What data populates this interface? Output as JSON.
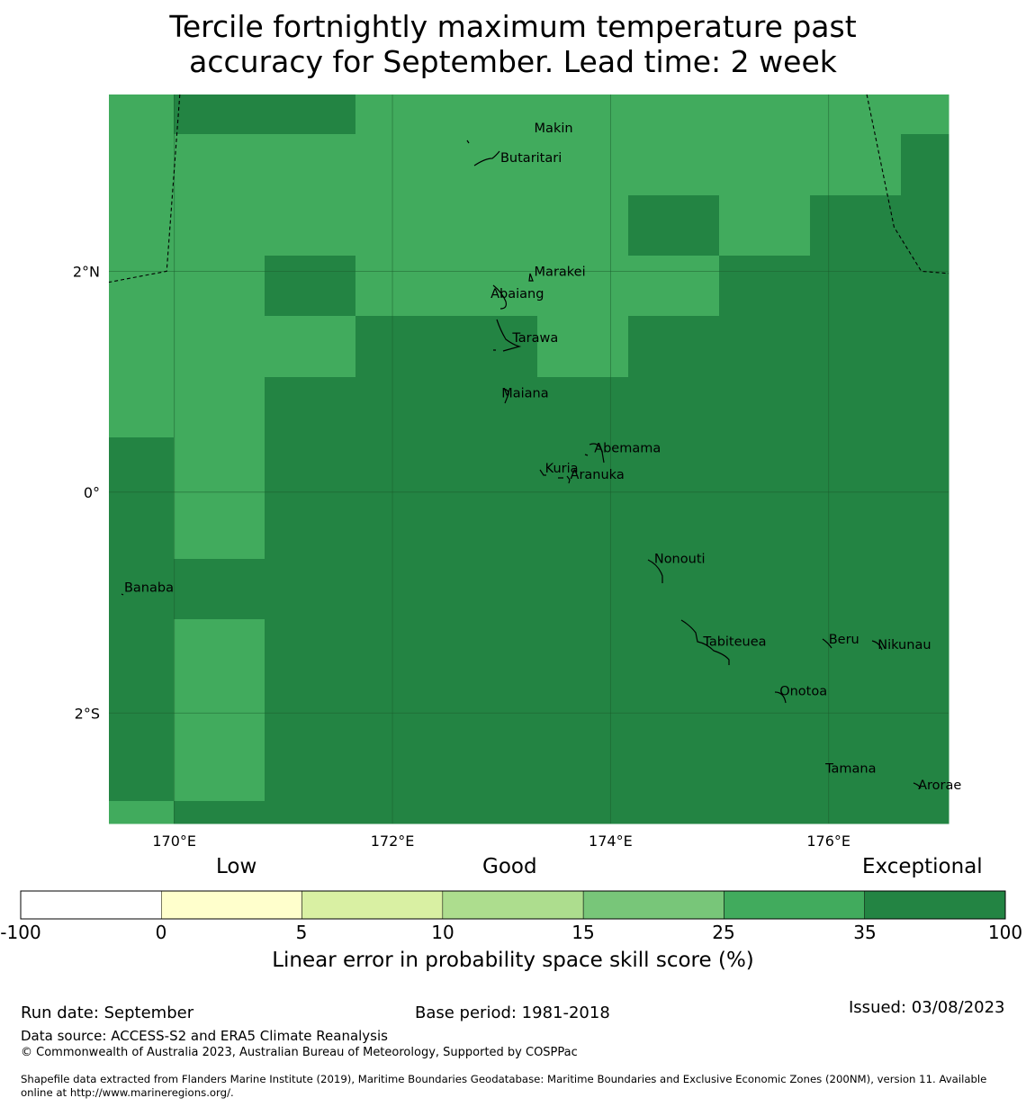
{
  "title": {
    "line1": "Tercile fortnightly maximum temperature past",
    "line2": "accuracy for September. Lead time: 2 week"
  },
  "map": {
    "lon_range": [
      169.4,
      177.1
    ],
    "lat_range": [
      -3.0,
      3.6
    ],
    "cell_size_deg": 0.833,
    "colors": {
      "exceptional": "#238443",
      "good_high": "#41ab5d"
    },
    "grid_columns": [
      "<=170.0",
      "170.0-170.8",
      "170.8-171.7",
      "171.7-172.5",
      "172.5-173.3",
      "173.3-174.2",
      "174.2-175.0",
      "175.0-175.8",
      "175.8-176.7",
      ">=176.7"
    ],
    "grid_rows_lat": [
      "3.6",
      "3.3",
      "2.8",
      "2.3",
      "1.8",
      "1.2",
      "0.5",
      "-0.6",
      "-1.2",
      "-2.8"
    ],
    "grid": [
      [
        "L",
        "D",
        "D",
        "L",
        "L",
        "L",
        "L",
        "L",
        "L",
        "L"
      ],
      [
        "L",
        "L",
        "L",
        "L",
        "L",
        "L",
        "L",
        "L",
        "L",
        "D"
      ],
      [
        "L",
        "L",
        "L",
        "L",
        "L",
        "L",
        "D",
        "L",
        "D",
        "D"
      ],
      [
        "L",
        "L",
        "D",
        "L",
        "L",
        "L",
        "L",
        "D",
        "D",
        "D"
      ],
      [
        "L",
        "L",
        "L",
        "D",
        "D",
        "L",
        "D",
        "D",
        "D",
        "D"
      ],
      [
        "L",
        "L",
        "D",
        "D",
        "D",
        "D",
        "D",
        "D",
        "D",
        "D"
      ],
      [
        "D",
        "L",
        "D",
        "D",
        "D",
        "D",
        "D",
        "D",
        "D",
        "D"
      ],
      [
        "D",
        "D",
        "D",
        "D",
        "D",
        "D",
        "D",
        "D",
        "D",
        "D"
      ],
      [
        "D",
        "L",
        "D",
        "D",
        "D",
        "D",
        "D",
        "D",
        "D",
        "D"
      ],
      [
        "L",
        "D",
        "D",
        "D",
        "D",
        "D",
        "D",
        "D",
        "D",
        "D"
      ]
    ],
    "x_ticks": [
      {
        "lon": 170,
        "label": "170°E"
      },
      {
        "lon": 172,
        "label": "172°E"
      },
      {
        "lon": 174,
        "label": "174°E"
      },
      {
        "lon": 176,
        "label": "176°E"
      }
    ],
    "y_ticks": [
      {
        "lat": 2,
        "label": "2°N"
      },
      {
        "lat": 0,
        "label": "0°"
      },
      {
        "lat": -2,
        "label": "2°S"
      }
    ],
    "places": [
      {
        "name": "Makin",
        "lon": 173.3,
        "lat": 3.3
      },
      {
        "name": "Butaritari",
        "lon": 172.99,
        "lat": 3.03
      },
      {
        "name": "Marakei",
        "lon": 173.3,
        "lat": 2.0
      },
      {
        "name": "Abaiang",
        "lon": 172.9,
        "lat": 1.8
      },
      {
        "name": "Tarawa",
        "lon": 173.1,
        "lat": 1.4
      },
      {
        "name": "Maiana",
        "lon": 173.0,
        "lat": 0.9
      },
      {
        "name": "Abemama",
        "lon": 173.85,
        "lat": 0.4
      },
      {
        "name": "Kuria",
        "lon": 173.4,
        "lat": 0.22
      },
      {
        "name": "Aranuka",
        "lon": 173.63,
        "lat": 0.16
      },
      {
        "name": "Nonouti",
        "lon": 174.4,
        "lat": -0.6
      },
      {
        "name": "Banaba",
        "lon": 169.54,
        "lat": -0.86
      },
      {
        "name": "Tabiteuea",
        "lon": 174.85,
        "lat": -1.35
      },
      {
        "name": "Beru",
        "lon": 176.0,
        "lat": -1.33
      },
      {
        "name": "Nikunau",
        "lon": 176.45,
        "lat": -1.38
      },
      {
        "name": "Onotoa",
        "lon": 175.55,
        "lat": -1.8
      },
      {
        "name": "Tamana",
        "lon": 175.97,
        "lat": -2.5
      },
      {
        "name": "Arorae",
        "lon": 176.82,
        "lat": -2.65
      }
    ],
    "eez_left": [
      [
        170.05,
        3.6
      ],
      [
        169.93,
        2.0
      ],
      [
        169.4,
        1.9
      ]
    ],
    "eez_right": [
      [
        176.35,
        3.6
      ],
      [
        176.6,
        2.4
      ],
      [
        176.85,
        2.0
      ],
      [
        177.1,
        1.98
      ]
    ]
  },
  "legend": {
    "headings": [
      "Low",
      "Good",
      "Exceptional"
    ],
    "bins": [
      {
        "from": "-100",
        "to": "0",
        "color": "#ffffff"
      },
      {
        "from": "0",
        "to": "5",
        "color": "#ffffcc"
      },
      {
        "from": "5",
        "to": "10",
        "color": "#d9f0a3"
      },
      {
        "from": "10",
        "to": "15",
        "color": "#addd8e"
      },
      {
        "from": "15",
        "to": "25",
        "color": "#78c679"
      },
      {
        "from": "25",
        "to": "35",
        "color": "#41ab5d"
      },
      {
        "from": "35",
        "to": "100",
        "color": "#238443"
      }
    ],
    "tick_labels": [
      "-100",
      "0",
      "5",
      "10",
      "15",
      "25",
      "35",
      "100"
    ],
    "axis_label": "Linear error in probability space skill score (%)"
  },
  "footer": {
    "run_date": "Run date: September",
    "base_period": "Base period: 1981-2018",
    "issued": "Issued: 03/08/2023",
    "data_source": "Data source: ACCESS-S2 and ERA5 Climate Reanalysis",
    "copyright": "© Commonwealth of Australia 2023, Australian Bureau of Meteorology, Supported by COSPPac",
    "shapefile_line1": "Shapefile data extracted from Flanders Marine Institute (2019), Maritime Boundaries Geodatabase: Maritime Boundaries and Exclusive Economic Zones (200NM), version 11. Available",
    "shapefile_line2": "online at http://www.marineregions.org/."
  }
}
